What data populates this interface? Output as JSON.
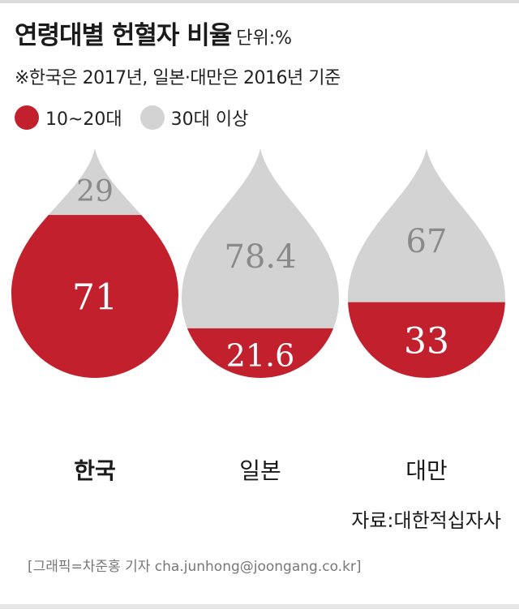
{
  "header": {
    "title": "연령대별 헌혈자 비율",
    "unit": "단위:%",
    "note": "※한국은 2017년, 일본·대만은 2016년 기준"
  },
  "colors": {
    "young": "#c3202e",
    "old": "#d3d3d3",
    "value_on_young": "#ffffff",
    "value_on_old": "#8a8a8a"
  },
  "chart_data": {
    "type": "bar",
    "title": "연령대별 헌혈자 비율",
    "unit": "%",
    "categories": [
      "한국",
      "일본",
      "대만"
    ],
    "series": [
      {
        "name": "10~20대",
        "values": [
          71,
          21.6,
          33
        ]
      },
      {
        "name": "30대 이상",
        "values": [
          29,
          78.4,
          67
        ]
      }
    ],
    "value_labels": {
      "10~20대": [
        "71",
        "21.6",
        "33"
      ],
      "30대 이상": [
        "29",
        "78.4",
        "67"
      ]
    },
    "legend": [
      "10~20대",
      "30대 이상"
    ],
    "legend_position": "top-left",
    "ylim": [
      0,
      100
    ],
    "stacked": true
  },
  "footer": {
    "source": "자료:대한적십자사",
    "credit": "[그래픽=차준홍 기자 cha.junhong@joongang.co.kr]"
  }
}
